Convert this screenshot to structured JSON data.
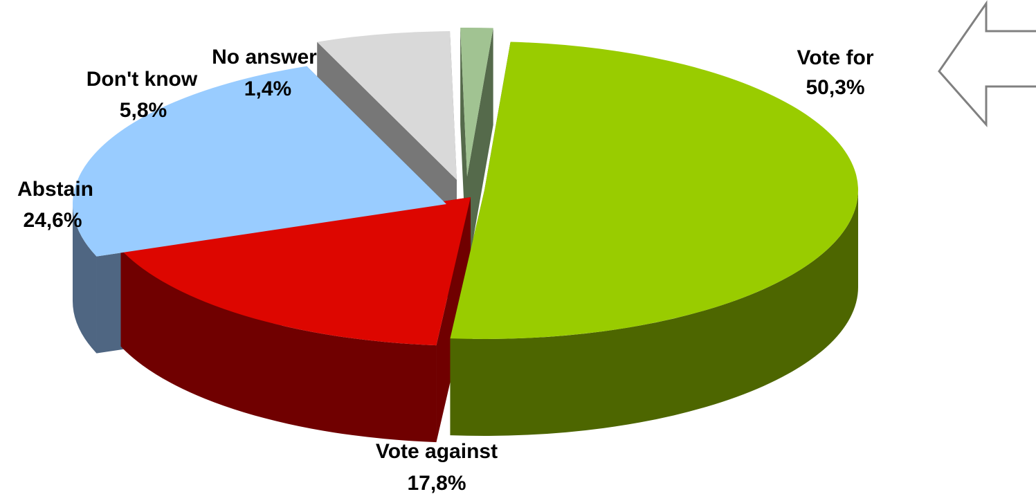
{
  "chart_data": {
    "type": "pie",
    "title": "",
    "slices": [
      {
        "label": "Vote for",
        "value": 50.3,
        "value_label": "50,3%",
        "color": "#99cc00",
        "side_color": "#4d6600"
      },
      {
        "label": "Vote against",
        "value": 17.8,
        "value_label": "17,8%",
        "color": "#dd0600",
        "side_color": "#700000"
      },
      {
        "label": "Abstain",
        "value": 24.6,
        "value_label": "24,6%",
        "color": "#99ccff",
        "side_color": "#4f6682"
      },
      {
        "label": "Don't know",
        "value": 5.8,
        "value_label": "5,8%",
        "color": "#d9d9d9",
        "side_color": "#777777"
      },
      {
        "label": "No answer",
        "value": 1.4,
        "value_label": "1,4%",
        "color": "#a1c392",
        "side_color": "#556a4b"
      }
    ],
    "style": "3d-exploded",
    "legend": "none",
    "annotation": {
      "type": "arrow",
      "direction": "left",
      "icon": "outline-arrow-left-icon",
      "color": "#808080"
    }
  }
}
